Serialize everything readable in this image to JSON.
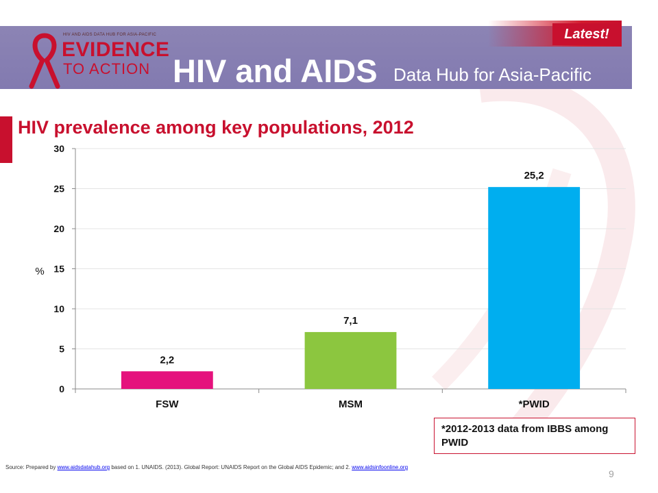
{
  "header": {
    "logo_small": "HIV AND AIDS DATA HUB FOR ASIA-PACIFIC",
    "logo_line1": "EVIDENCE",
    "logo_line2": "TO ACTION",
    "title": "HIV and AIDS",
    "subtitle": "Data Hub for Asia-Pacific",
    "badge": "Latest!"
  },
  "slide": {
    "title": "HIV prevalence among key populations, 2012",
    "page_number": "9"
  },
  "chart_data": {
    "type": "bar",
    "title": "HIV prevalence among key populations, 2012",
    "categories": [
      "FSW",
      "MSM",
      "*PWID"
    ],
    "values": [
      2.2,
      7.1,
      25.2
    ],
    "value_labels": [
      "2,2",
      "7,1",
      "25,2"
    ],
    "colors": [
      "#e5127d",
      "#8cc63f",
      "#00aeef"
    ],
    "xlabel": "",
    "ylabel": "%",
    "ylim": [
      0,
      30
    ],
    "yticks": [
      0,
      5,
      10,
      15,
      20,
      25,
      30
    ],
    "grid": true
  },
  "note": {
    "text": "*2012-2013 data from IBBS among PWID"
  },
  "source": {
    "prefix": "Source: Prepared by ",
    "link1": "www.aidsdatahub.org",
    "middle": "  based on 1. UNAIDS. (2013). Global Report: UNAIDS Report on the Global AIDS Epidemic; and 2. ",
    "link2": "www.aidsinfoonline.org"
  },
  "colors": {
    "banner": "#8a82b3",
    "accent": "#c8102e"
  }
}
